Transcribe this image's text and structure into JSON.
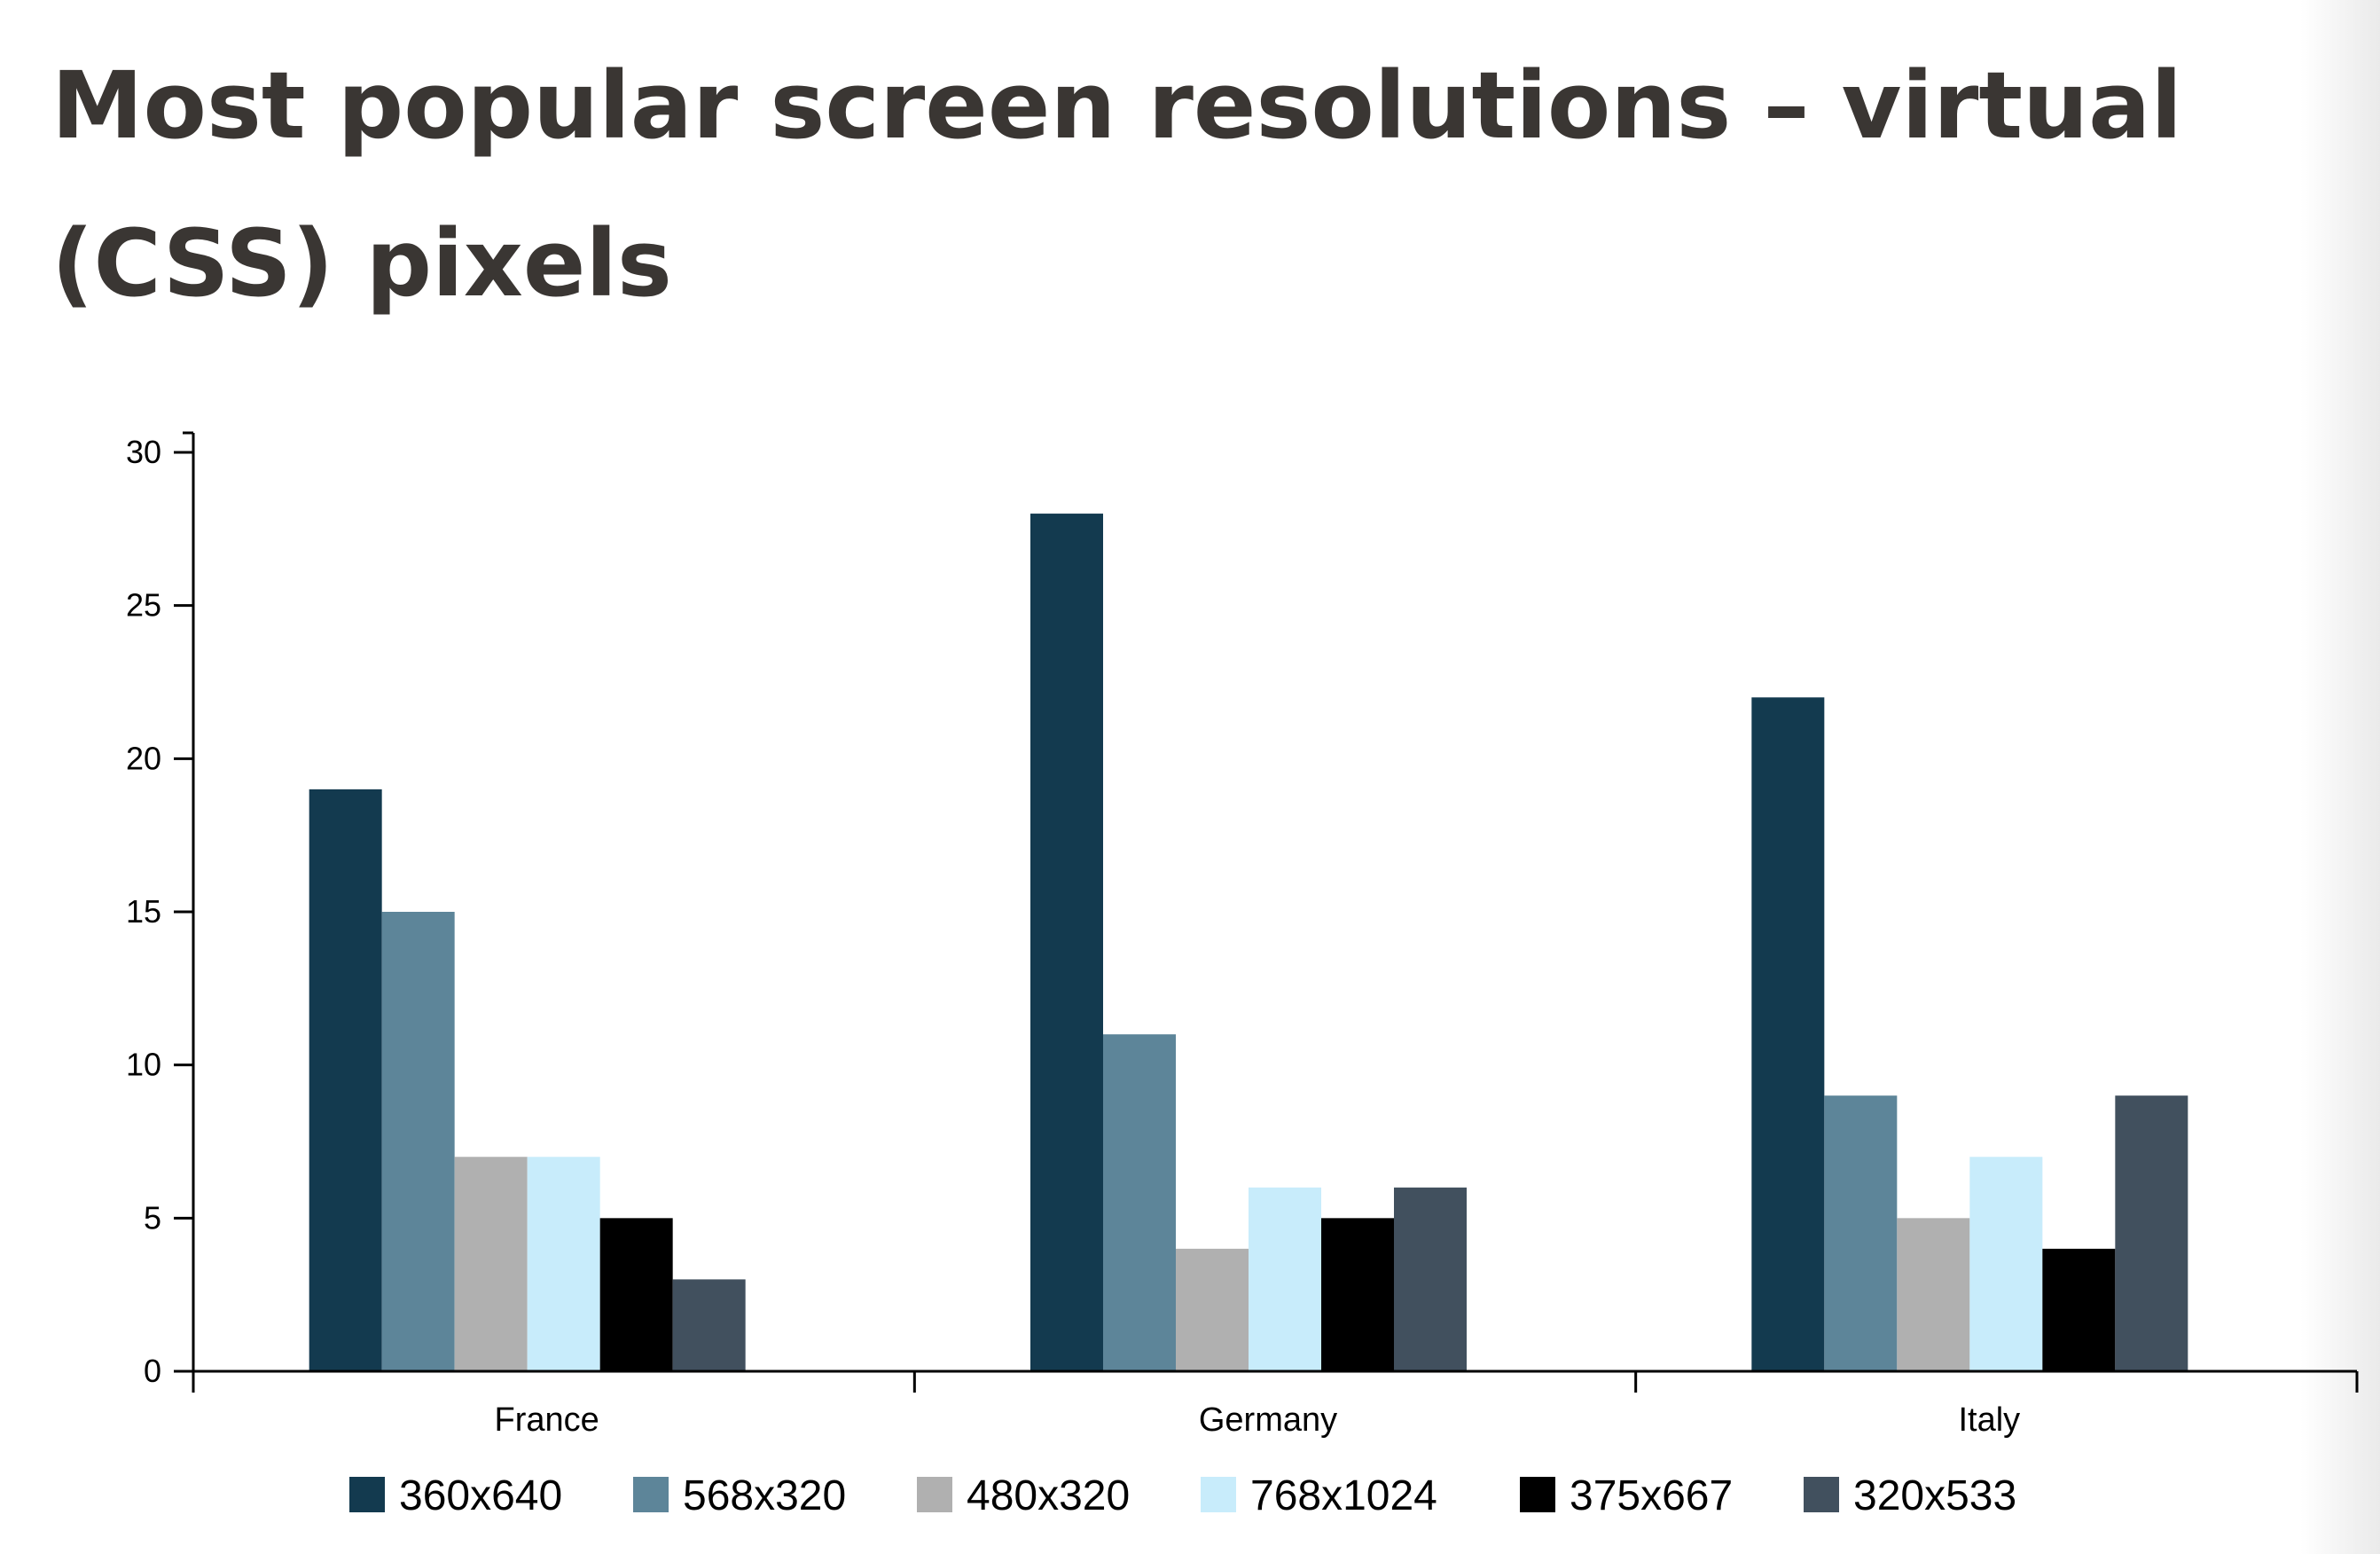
{
  "page": {
    "title": "Most popular screen resolutions – virtual (CSS) pixels"
  },
  "chart_data": {
    "type": "bar",
    "title": "Most popular screen resolutions – virtual (CSS) pixels",
    "xlabel": "",
    "ylabel": "",
    "categories": [
      "France",
      "Germany",
      "Italy"
    ],
    "ylim": [
      0,
      30
    ],
    "yticks": [
      0,
      5,
      10,
      15,
      20,
      25,
      30
    ],
    "grid": false,
    "legend_position": "bottom",
    "series": [
      {
        "name": "360x640",
        "color": "#133a4f",
        "values": [
          19,
          28,
          22
        ]
      },
      {
        "name": "568x320",
        "color": "#5d8599",
        "values": [
          15,
          11,
          9
        ]
      },
      {
        "name": "480x320",
        "color": "#b0b0b0",
        "values": [
          7,
          4,
          5
        ]
      },
      {
        "name": "768x1024",
        "color": "#c8ecfb",
        "values": [
          7,
          6,
          7
        ]
      },
      {
        "name": "375x667",
        "color": "#000000",
        "values": [
          5,
          5,
          4
        ]
      },
      {
        "name": "320x533",
        "color": "#41505e",
        "values": [
          3,
          6,
          9
        ]
      }
    ]
  }
}
